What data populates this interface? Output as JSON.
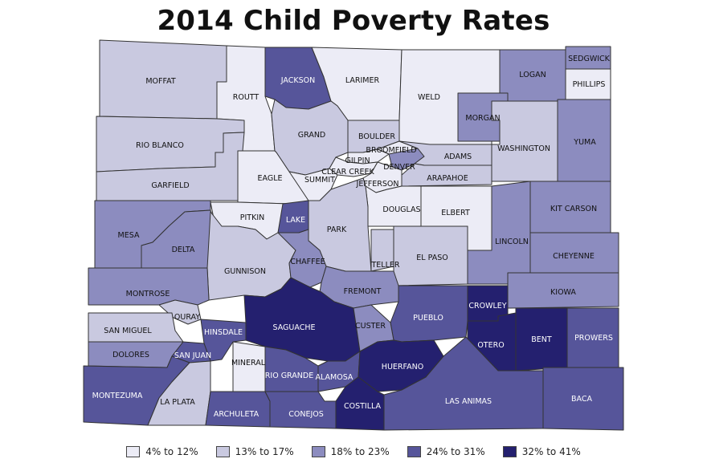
{
  "title": "2014 Child Poverty Rates",
  "legend": [
    {
      "label": "4% to 12%",
      "color": "#ececf6"
    },
    {
      "label": "13% to 17%",
      "color": "#c9c9e0"
    },
    {
      "label": "18% to 23%",
      "color": "#8c8cbf"
    },
    {
      "label": "24% to 31%",
      "color": "#56559a"
    },
    {
      "label": "32% to 41%",
      "color": "#24206f"
    }
  ],
  "counties": [
    {
      "name": "MOFFAT",
      "cls": 1
    },
    {
      "name": "ROUTT",
      "cls": 0
    },
    {
      "name": "JACKSON",
      "cls": 3
    },
    {
      "name": "LARIMER",
      "cls": 0
    },
    {
      "name": "WELD",
      "cls": 0
    },
    {
      "name": "LOGAN",
      "cls": 2
    },
    {
      "name": "SEDGWICK",
      "cls": 2
    },
    {
      "name": "PHILLIPS",
      "cls": 0
    },
    {
      "name": "RIO BLANCO",
      "cls": 1
    },
    {
      "name": "GARFIELD",
      "cls": 1
    },
    {
      "name": "GRAND",
      "cls": 1
    },
    {
      "name": "BOULDER",
      "cls": 1
    },
    {
      "name": "BROOMFIELD",
      "cls": 0
    },
    {
      "name": "GILPIN",
      "cls": 0
    },
    {
      "name": "CLEAR CREEK",
      "cls": 0
    },
    {
      "name": "DENVER",
      "cls": 2
    },
    {
      "name": "ADAMS",
      "cls": 1
    },
    {
      "name": "ARAPAHOE",
      "cls": 1
    },
    {
      "name": "JEFFERSON",
      "cls": 0
    },
    {
      "name": "MORGAN",
      "cls": 2
    },
    {
      "name": "WASHINGTON",
      "cls": 1
    },
    {
      "name": "YUMA",
      "cls": 2
    },
    {
      "name": "EAGLE",
      "cls": 0
    },
    {
      "name": "SUMMIT",
      "cls": 0
    },
    {
      "name": "DOUGLAS",
      "cls": 0
    },
    {
      "name": "ELBERT",
      "cls": 0
    },
    {
      "name": "KIT CARSON",
      "cls": 2
    },
    {
      "name": "MESA",
      "cls": 2
    },
    {
      "name": "PITKIN",
      "cls": 0
    },
    {
      "name": "LAKE",
      "cls": 3
    },
    {
      "name": "PARK",
      "cls": 1
    },
    {
      "name": "LINCOLN",
      "cls": 2
    },
    {
      "name": "DELTA",
      "cls": 2
    },
    {
      "name": "GUNNISON",
      "cls": 1
    },
    {
      "name": "CHAFFEE",
      "cls": 2
    },
    {
      "name": "TELLER",
      "cls": 1
    },
    {
      "name": "EL PASO",
      "cls": 1
    },
    {
      "name": "CHEYENNE",
      "cls": 2
    },
    {
      "name": "MONTROSE",
      "cls": 2
    },
    {
      "name": "FREMONT",
      "cls": 2
    },
    {
      "name": "KIOWA",
      "cls": 2
    },
    {
      "name": "OURAY",
      "cls": 1
    },
    {
      "name": "CROWLEY",
      "cls": 4
    },
    {
      "name": "PUEBLO",
      "cls": 3
    },
    {
      "name": "SAN MIGUEL",
      "cls": 1
    },
    {
      "name": "HINSDALE",
      "cls": 3
    },
    {
      "name": "SAGUACHE",
      "cls": 4
    },
    {
      "name": "CUSTER",
      "cls": 2
    },
    {
      "name": "OTERO",
      "cls": 4
    },
    {
      "name": "BENT",
      "cls": 4
    },
    {
      "name": "PROWERS",
      "cls": 3
    },
    {
      "name": "DOLORES",
      "cls": 2
    },
    {
      "name": "SAN JUAN",
      "cls": 3
    },
    {
      "name": "MINERAL",
      "cls": 0
    },
    {
      "name": "RIO GRANDE",
      "cls": 3
    },
    {
      "name": "ALAMOSA",
      "cls": 3
    },
    {
      "name": "HUERFANO",
      "cls": 4
    },
    {
      "name": "MONTEZUMA",
      "cls": 3
    },
    {
      "name": "LA PLATA",
      "cls": 1
    },
    {
      "name": "ARCHULETA",
      "cls": 3
    },
    {
      "name": "CONEJOS",
      "cls": 3
    },
    {
      "name": "COSTILLA",
      "cls": 4
    },
    {
      "name": "LAS ANIMAS",
      "cls": 3
    },
    {
      "name": "BACA",
      "cls": 3
    }
  ]
}
